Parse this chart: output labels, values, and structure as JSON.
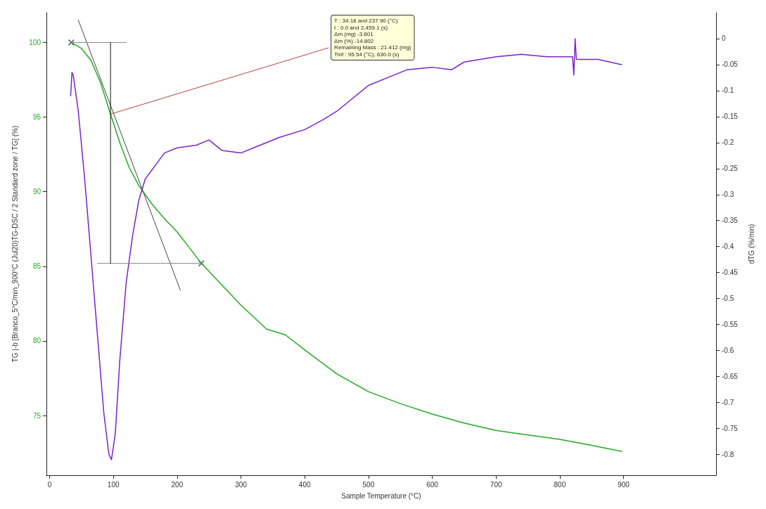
{
  "chart_data": {
    "type": "line",
    "xlabel": "Sample Temperature (°C)",
    "ylabel": "TG |-b [Branco_5°C/min_900°C (Jul20)TG-DSC / 2 Standard zone / TG] (%)",
    "y2label": "dTG (%/min)",
    "xlim": [
      -5,
      1045
    ],
    "xticks": [
      0,
      100,
      200,
      300,
      400,
      500,
      600,
      700,
      800,
      900
    ],
    "ylim": [
      71,
      102
    ],
    "yticks": [
      75,
      80,
      85,
      90,
      95,
      100
    ],
    "y2lim": [
      -0.84,
      0.05
    ],
    "y2ticks": [
      0,
      -0.05,
      -0.1,
      -0.15,
      -0.2,
      -0.25,
      -0.3,
      -0.35,
      -0.4,
      -0.45,
      -0.5,
      -0.55,
      -0.6,
      -0.65,
      -0.7,
      -0.75,
      -0.8
    ],
    "marker": "none",
    "line_style": "solid",
    "grid": false,
    "series": [
      {
        "color": "#22aa22",
        "x": [
          34,
          50,
          65,
          80,
          95.5,
          110,
          125,
          140,
          160,
          180,
          200,
          220,
          238,
          260,
          300,
          340,
          370,
          400,
          450,
          500,
          550,
          600,
          650,
          700,
          750,
          800,
          850,
          897
        ],
        "values": [
          100,
          99.6,
          98.8,
          97.3,
          95.2,
          93.3,
          91.6,
          90.4,
          89.2,
          88.2,
          87.3,
          86.2,
          85.2,
          84.2,
          82.4,
          80.8,
          80.4,
          79.4,
          77.8,
          76.6,
          75.8,
          75.1,
          74.5,
          74.0,
          73.7,
          73.4,
          73.0,
          72.6
        ]
      },
      {
        "color": "#7b22c8",
        "axis": "y2",
        "x": [
          33,
          35,
          37,
          45,
          55,
          65,
          75,
          85,
          93,
          97,
          103,
          110,
          120,
          130,
          140,
          150,
          165,
          180,
          200,
          230,
          250,
          270,
          300,
          330,
          360,
          400,
          430,
          450,
          475,
          500,
          530,
          560,
          600,
          630,
          650,
          700,
          740,
          780,
          820,
          822,
          824,
          826,
          860,
          897
        ],
        "values": [
          -0.11,
          -0.065,
          -0.07,
          -0.14,
          -0.27,
          -0.42,
          -0.57,
          -0.72,
          -0.8,
          -0.81,
          -0.76,
          -0.62,
          -0.47,
          -0.38,
          -0.31,
          -0.27,
          -0.245,
          -0.22,
          -0.21,
          -0.205,
          -0.195,
          -0.215,
          -0.22,
          -0.205,
          -0.19,
          -0.175,
          -0.155,
          -0.14,
          -0.115,
          -0.09,
          -0.075,
          -0.06,
          -0.055,
          -0.06,
          -0.045,
          -0.035,
          -0.03,
          -0.035,
          -0.035,
          -0.07,
          0.0,
          -0.04,
          -0.04,
          -0.05
        ]
      },
      {
        "type": "line",
        "color": "#444444",
        "x": [
          45,
          205
        ],
        "values": [
          101.5,
          83.4
        ]
      },
      {
        "type": "line",
        "color": "#888888",
        "x": [
          34,
          120
        ],
        "values": [
          100,
          100
        ]
      },
      {
        "type": "line",
        "color": "#888888",
        "x": [
          75,
          240
        ],
        "values": [
          85.2,
          85.2
        ]
      },
      {
        "type": "line",
        "color": "#111111",
        "x": [
          95.5,
          95.5
        ],
        "values": [
          100,
          85.2
        ]
      },
      {
        "type": "scatter",
        "marker": "cross",
        "color": "#333333",
        "x": [
          34,
          238
        ],
        "values": [
          100,
          85.2
        ]
      }
    ],
    "annotations": [
      {
        "text": "T : 34.18 and 237.90 (°C)\nt : 0.0 and 2,459.1 (s)\nΔm (mg) -3.601\nΔm (%) -14.802\nRemaining Mass : 21.412 (mg)\nTinf : 95.54 (°C), 630.0 (s)",
        "x": 95.5,
        "y": 95.2
      }
    ]
  }
}
